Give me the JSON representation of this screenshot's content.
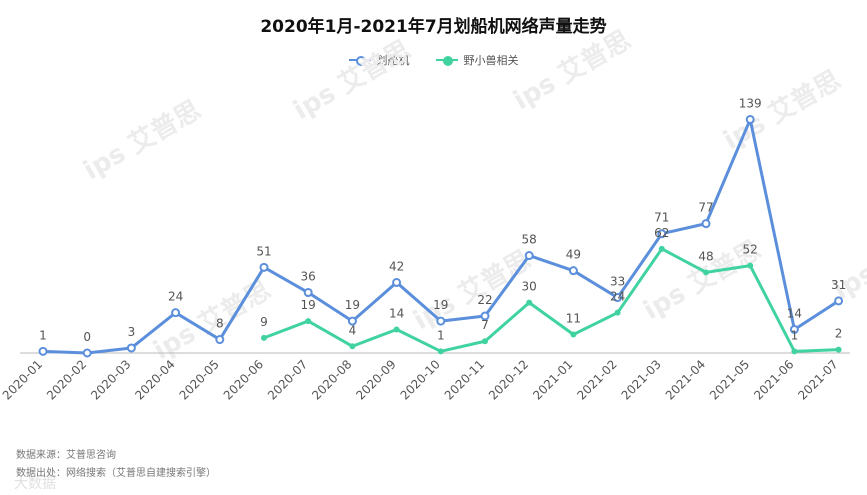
{
  "title": "2020年1月-2021年7月划船机网络声量走势",
  "footer": {
    "source": "数据来源：艾普思咨询",
    "scope": "数据出处：网络搜索（艾普思自建搜索引擎）"
  },
  "watermark": {
    "text": "ips 艾普思",
    "corner": "大数据"
  },
  "colors": {
    "series1": "#5b8fdc",
    "series2": "#40d3a0",
    "axis": "#bbbbbb",
    "label": "#555555"
  },
  "chart_data": {
    "type": "line",
    "categories": [
      "2020-01",
      "2020-02",
      "2020-03",
      "2020-04",
      "2020-05",
      "2020-06",
      "2020-07",
      "2020-08",
      "2020-09",
      "2020-10",
      "2020-11",
      "2020-12",
      "2021-01",
      "2021-02",
      "2021-03",
      "2021-04",
      "2021-05",
      "2021-06",
      "2021-07"
    ],
    "series": [
      {
        "name": "划船机",
        "values": [
          1,
          0,
          3,
          24,
          8,
          51,
          36,
          19,
          42,
          19,
          22,
          58,
          49,
          33,
          71,
          77,
          139,
          14,
          31
        ]
      },
      {
        "name": "野小兽相关",
        "values": [
          null,
          null,
          null,
          null,
          null,
          9,
          19,
          4,
          14,
          1,
          7,
          30,
          11,
          24,
          62,
          48,
          52,
          1,
          2
        ]
      }
    ],
    "ylim": [
      0,
      150
    ],
    "grid": false,
    "legend_position": "top-center"
  }
}
